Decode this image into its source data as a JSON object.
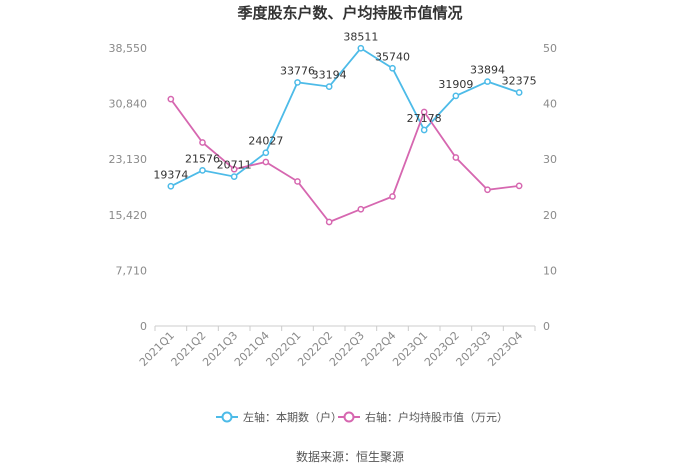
{
  "source_text": "数据来源：恒生聚源",
  "chart_data": {
    "type": "line",
    "title": "季度股东户数、户均持股市值情况",
    "categories": [
      "2021Q1",
      "2021Q2",
      "2021Q3",
      "2021Q4",
      "2022Q1",
      "2022Q2",
      "2022Q3",
      "2022Q4",
      "2023Q1",
      "2023Q2",
      "2023Q3",
      "2023Q4"
    ],
    "y_left": {
      "min": 0,
      "max": 38550,
      "ticks": [
        0,
        7710,
        15420,
        23130,
        30840,
        38550
      ],
      "tick_labels": [
        "0",
        "7,710",
        "15,420",
        "23,130",
        "30,840",
        "38,550"
      ]
    },
    "y_right": {
      "min": 0,
      "max": 50,
      "ticks": [
        0,
        10,
        20,
        30,
        40,
        50
      ],
      "tick_labels": [
        "0",
        "10",
        "20",
        "30",
        "40",
        "50"
      ]
    },
    "series": [
      {
        "name": "左轴：本期数（户）",
        "axis": "left",
        "color": "#4dbbe8",
        "values": [
          19374,
          21576,
          20711,
          24027,
          33776,
          33194,
          38511,
          35740,
          27178,
          31909,
          33894,
          32375
        ],
        "labels": [
          "19374",
          "21576",
          "20711",
          "24027",
          "33776",
          "33194",
          "38511",
          "35740",
          "27178",
          "31909",
          "33894",
          "32375"
        ]
      },
      {
        "name": "右轴：户均持股市值（万元）",
        "axis": "right",
        "color": "#d667b0",
        "values": [
          40.8,
          33.0,
          28.2,
          29.5,
          26.0,
          18.7,
          21.0,
          23.3,
          38.5,
          30.3,
          24.5,
          25.2
        ]
      }
    ],
    "legend_position": "bottom",
    "grid": false
  }
}
